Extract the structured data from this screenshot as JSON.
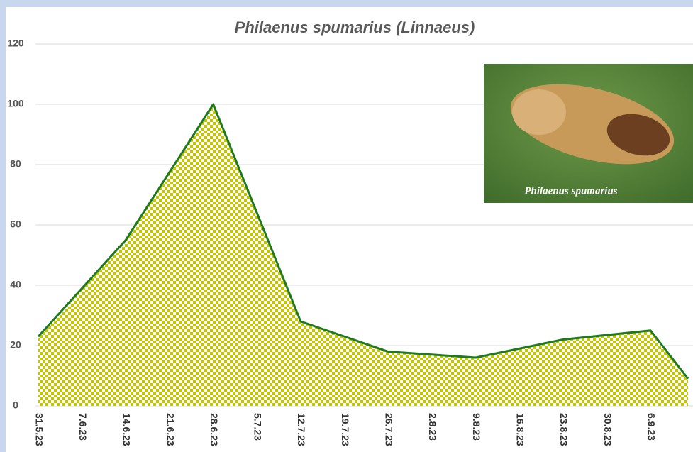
{
  "chart_data": {
    "type": "area",
    "title": "Philaenus spumarius (Linnaeus)",
    "inset_label": "Philaenus spumarius",
    "x": [
      "31.5.23",
      "14.6.23",
      "28.6.23",
      "12.7.23",
      "26.7.23",
      "9.8.23",
      "23.8.23",
      "6.9.23",
      "12.9.23"
    ],
    "values": [
      23,
      55,
      100,
      28,
      18,
      16,
      22,
      25,
      9
    ],
    "color": "#1e7a1e",
    "fill_color": "#c4c400",
    "xlim": [
      "31.5.23",
      "12.9.23"
    ],
    "xticks": [
      "31.5.23",
      "7.6.23",
      "14.6.23",
      "21.6.23",
      "28.6.23",
      "5.7.23",
      "12.7.23",
      "19.7.23",
      "26.7.23",
      "2.8.23",
      "9.8.23",
      "16.8.23",
      "23.8.23",
      "30.8.23",
      "6.9.23"
    ],
    "ylim": [
      0,
      120
    ],
    "yticks": [
      0,
      20,
      40,
      60,
      80,
      100,
      120
    ],
    "grid": true
  }
}
